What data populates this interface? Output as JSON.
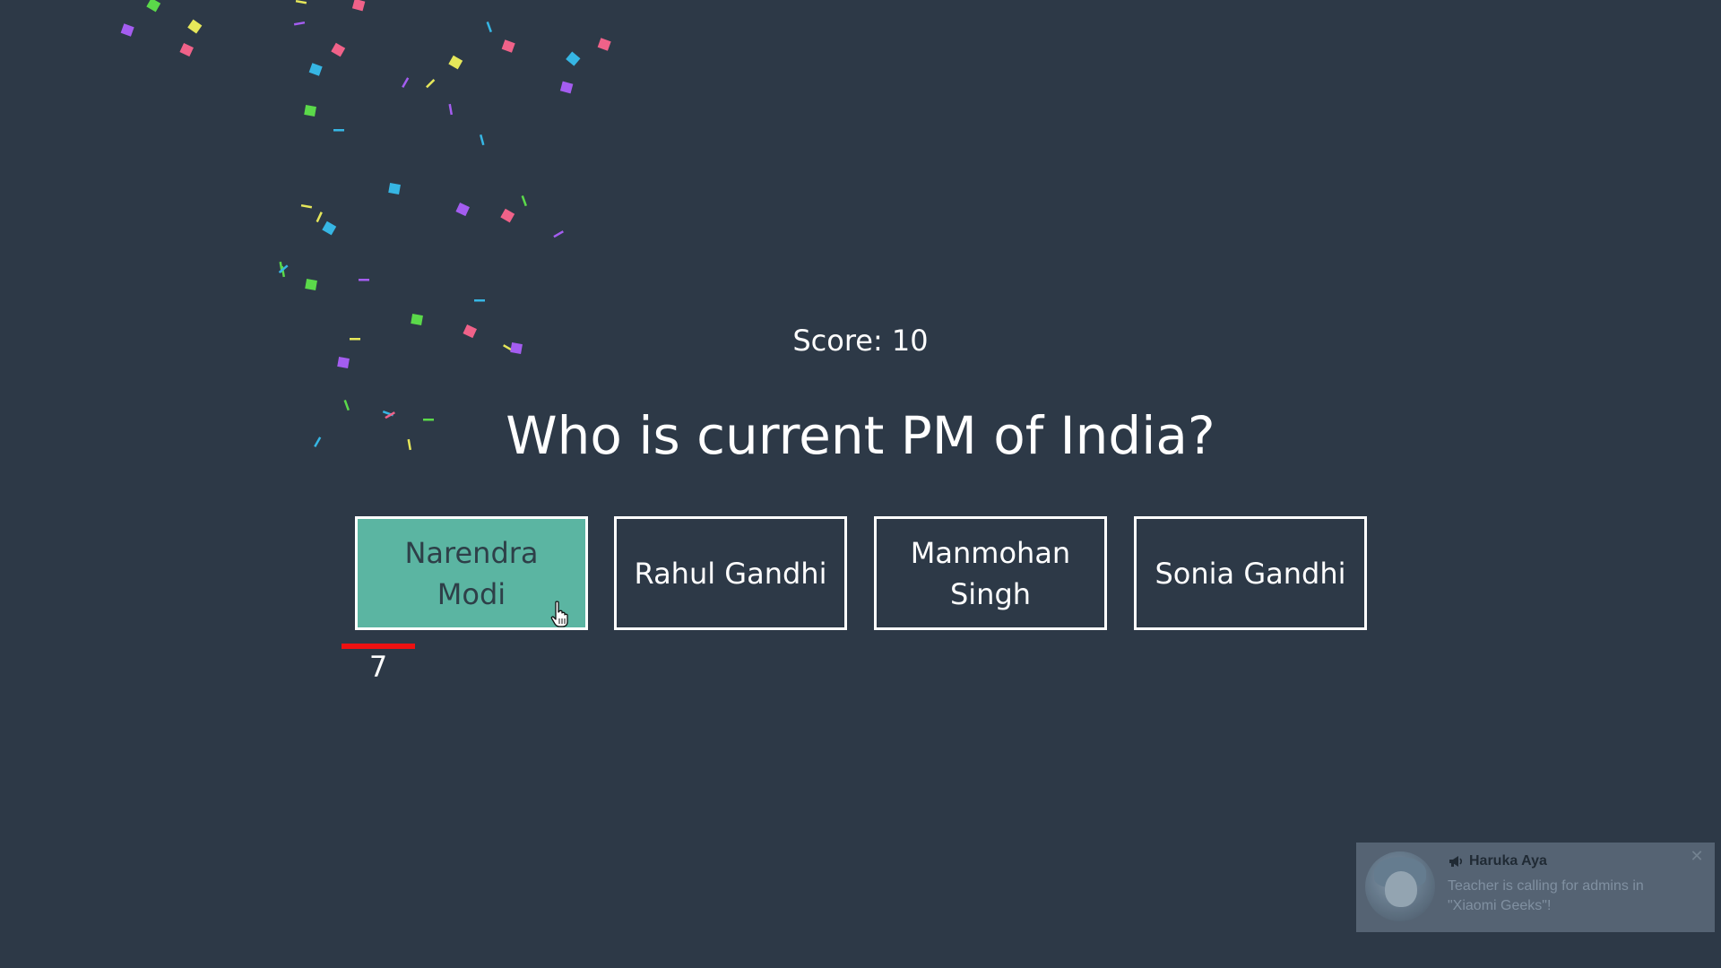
{
  "quiz": {
    "score_text": "Score: 10",
    "question": "Who is current PM of India?",
    "answers": [
      {
        "label": "Narendra Modi",
        "state": "correct"
      },
      {
        "label": "Rahul Gandhi",
        "state": "default"
      },
      {
        "label": "Manmohan Singh",
        "state": "default"
      },
      {
        "label": "Sonia Gandhi",
        "state": "default"
      }
    ],
    "timer": {
      "seconds_left": "7",
      "progress_fraction": 1.0
    }
  },
  "notification": {
    "sender": "Haruka Aya",
    "message": "Teacher is calling for admins in \"Xiaomi Geeks\"!",
    "close_glyph": "✕",
    "icon": "megaphone-icon"
  },
  "colors": {
    "background": "#2d3947",
    "correct_answer": "#5bb5a2",
    "timer_bar": "#ee1111",
    "confetti": [
      "#a45df0",
      "#f06289",
      "#36b6e4",
      "#5bd94a",
      "#e6e75a"
    ]
  }
}
